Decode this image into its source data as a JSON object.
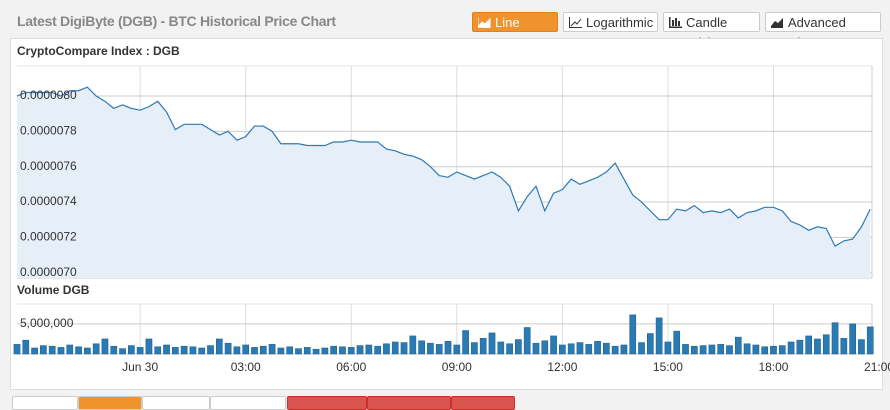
{
  "header": {
    "title": "Latest DigiByte (DGB) - BTC Historical Price Chart",
    "buttons": [
      "Line Chart",
      "Logarithmic",
      "Candle Stick",
      "Advanced Chart"
    ]
  },
  "chart_data": [
    {
      "type": "line",
      "title": "CryptoCompare Index : DGB",
      "color": "#2f7ab5",
      "fill": "#e6eef7",
      "grid": true,
      "x": [
        -3.5,
        -3.25,
        -3,
        -2.75,
        -2.5,
        -2.25,
        -2,
        -1.75,
        -1.5,
        -1.25,
        -1,
        -0.75,
        -0.5,
        -0.25,
        0,
        0.25,
        0.5,
        0.75,
        1,
        1.25,
        1.5,
        1.75,
        2,
        2.25,
        2.5,
        2.75,
        3,
        3.25,
        3.5,
        3.75,
        4,
        4.25,
        4.5,
        4.75,
        5,
        5.25,
        5.5,
        5.75,
        6,
        6.25,
        6.5,
        6.75,
        7,
        7.25,
        7.5,
        7.75,
        8,
        8.25,
        8.5,
        8.75,
        9,
        9.25,
        9.5,
        9.75,
        10,
        10.25,
        10.5,
        10.75,
        11,
        11.25,
        11.5,
        11.75,
        12,
        12.25,
        12.5,
        12.75,
        13,
        13.25,
        13.5,
        13.75,
        14,
        14.25,
        14.5,
        14.75,
        15,
        15.25,
        15.5,
        15.75,
        16,
        16.25,
        16.5,
        16.75,
        17,
        17.25,
        17.5,
        17.75,
        18,
        18.25,
        18.5,
        18.75,
        19,
        19.25,
        19.5,
        19.75,
        20,
        20.25,
        20.5,
        20.75
      ],
      "values": [
        8e-06,
        8.02e-06,
        8.02e-06,
        8.02e-06,
        8.02e-06,
        8e-06,
        8.03e-06,
        8.03e-06,
        8.05e-06,
        8e-06,
        7.97e-06,
        7.93e-06,
        7.95e-06,
        7.93e-06,
        7.92e-06,
        7.94e-06,
        7.97e-06,
        7.91e-06,
        7.81e-06,
        7.84e-06,
        7.84e-06,
        7.84e-06,
        7.81e-06,
        7.78e-06,
        7.8e-06,
        7.75e-06,
        7.77e-06,
        7.83e-06,
        7.83e-06,
        7.8e-06,
        7.73e-06,
        7.73e-06,
        7.73e-06,
        7.72e-06,
        7.72e-06,
        7.72e-06,
        7.74e-06,
        7.74e-06,
        7.75e-06,
        7.74e-06,
        7.74e-06,
        7.74e-06,
        7.7e-06,
        7.69e-06,
        7.67e-06,
        7.66e-06,
        7.64e-06,
        7.6e-06,
        7.55e-06,
        7.54e-06,
        7.57e-06,
        7.55e-06,
        7.53e-06,
        7.55e-06,
        7.57e-06,
        7.54e-06,
        7.49e-06,
        7.35e-06,
        7.43e-06,
        7.49e-06,
        7.35e-06,
        7.45e-06,
        7.47e-06,
        7.53e-06,
        7.5e-06,
        7.52e-06,
        7.54e-06,
        7.57e-06,
        7.62e-06,
        7.53e-06,
        7.44e-06,
        7.4e-06,
        7.35e-06,
        7.3e-06,
        7.3e-06,
        7.36e-06,
        7.35e-06,
        7.38e-06,
        7.34e-06,
        7.35e-06,
        7.34e-06,
        7.36e-06,
        7.31e-06,
        7.34e-06,
        7.35e-06,
        7.37e-06,
        7.37e-06,
        7.35e-06,
        7.29e-06,
        7.27e-06,
        7.24e-06,
        7.26e-06,
        7.25e-06,
        7.15e-06,
        7.18e-06,
        7.19e-06,
        7.26e-06,
        7.36e-06
      ],
      "xlim": [
        -3.5,
        20.8
      ],
      "xticks": [
        {
          "value": 0,
          "label": "Jun 30"
        },
        {
          "value": 3,
          "label": "03:00"
        },
        {
          "value": 6,
          "label": "06:00"
        },
        {
          "value": 9,
          "label": "09:00"
        },
        {
          "value": 12,
          "label": "12:00"
        },
        {
          "value": 15,
          "label": "15:00"
        },
        {
          "value": 18,
          "label": "18:00"
        },
        {
          "value": 21,
          "label": "21:00"
        }
      ],
      "ylim": [
        6.97e-06,
        8.17e-06
      ],
      "yticks": [
        {
          "value": 7e-06,
          "label": "0.0000070"
        },
        {
          "value": 7.2e-06,
          "label": "0.0000072"
        },
        {
          "value": 7.4e-06,
          "label": "0.0000074"
        },
        {
          "value": 7.6e-06,
          "label": "0.0000076"
        },
        {
          "value": 7.8e-06,
          "label": "0.0000078"
        },
        {
          "value": 8e-06,
          "label": "0.0000080"
        }
      ]
    },
    {
      "type": "bar",
      "title": "Volume DGB",
      "color": "#2a7ab3",
      "grid": true,
      "values": [
        1600000,
        2300000,
        1000000,
        1400000,
        1300000,
        1100000,
        1500000,
        1200000,
        1000000,
        1700000,
        2500000,
        1300000,
        900000,
        1400000,
        1100000,
        2500000,
        1200000,
        1500000,
        1100000,
        1300000,
        1200000,
        1000000,
        1400000,
        2500000,
        1800000,
        1200000,
        1500000,
        1100000,
        1300000,
        1600000,
        1000000,
        1200000,
        900000,
        1100000,
        800000,
        1000000,
        1300000,
        1200000,
        1100000,
        1400000,
        1500000,
        1300000,
        1700000,
        2000000,
        1900000,
        3000000,
        2200000,
        1800000,
        1600000,
        2100000,
        1500000,
        3900000,
        1900000,
        2600000,
        3500000,
        2000000,
        1700000,
        2400000,
        4400000,
        1800000,
        2200000,
        3000000,
        1500000,
        1700000,
        1900000,
        1600000,
        2100000,
        1800000,
        1300000,
        1500000,
        6500000,
        1900000,
        3400000,
        6000000,
        2000000,
        3800000,
        1600000,
        1300000,
        1400000,
        1500000,
        1600000,
        1400000,
        2800000,
        1700000,
        1500000,
        1200000,
        1300000,
        1400000,
        2000000,
        2300000,
        3000000,
        2500000,
        3200000,
        5200000,
        2600000,
        5000000,
        2400000,
        4500000
      ],
      "ylim": [
        0,
        8300000
      ],
      "yticks": [
        {
          "value": 5000000,
          "label": "5,000,000"
        }
      ]
    }
  ]
}
